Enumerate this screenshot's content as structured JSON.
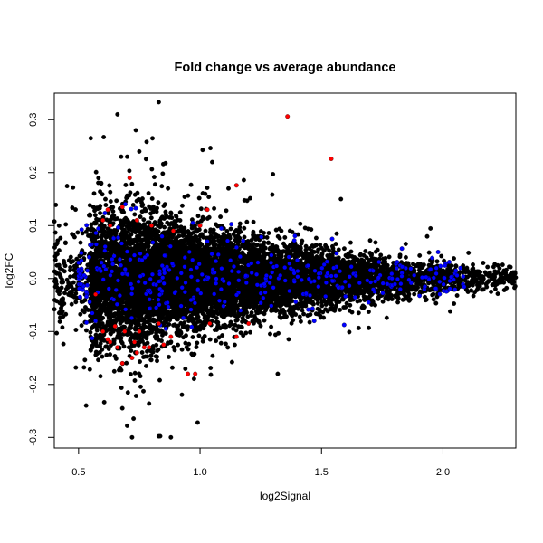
{
  "chart_data": {
    "type": "scatter",
    "title": "Fold change vs average abundance",
    "xlabel": "log2Signal",
    "ylabel": "log2FC",
    "xlim": [
      0.4,
      2.3
    ],
    "ylim": [
      -0.32,
      0.35
    ],
    "x_ticks": [
      0.5,
      1.0,
      1.5,
      2.0
    ],
    "x_tick_labels": [
      "0.5",
      "1.0",
      "1.5",
      "2.0"
    ],
    "y_ticks": [
      -0.3,
      -0.2,
      -0.1,
      0.0,
      0.1,
      0.2,
      0.3
    ],
    "y_tick_labels": [
      "-0.3",
      "-0.2",
      "-0.1",
      "0.0",
      "0.1",
      "0.2",
      "0.3"
    ],
    "grid": false,
    "legend": "none",
    "series": [
      {
        "color": "#000000",
        "envelope": {
          "x": [
            0.45,
            0.55,
            0.65,
            0.75,
            0.85,
            0.95,
            1.05,
            1.2,
            1.35,
            1.5,
            1.65,
            1.8,
            1.95,
            2.1,
            2.25
          ],
          "sd": [
            0.045,
            0.06,
            0.065,
            0.062,
            0.055,
            0.048,
            0.042,
            0.036,
            0.031,
            0.027,
            0.023,
            0.02,
            0.017,
            0.014,
            0.011
          ]
        },
        "density": [
          0.02,
          0.12,
          0.16,
          0.15,
          0.13,
          0.11,
          0.09,
          0.07,
          0.05,
          0.035,
          0.025,
          0.015,
          0.01
        ],
        "n_points": 9000,
        "points": [
          [
            0.66,
            0.31
          ],
          [
            0.83,
            0.333
          ],
          [
            0.55,
            0.265
          ],
          [
            0.78,
            0.258
          ],
          [
            0.75,
            0.24
          ],
          [
            0.7,
            0.23
          ],
          [
            1.05,
            0.22
          ],
          [
            1.3,
            0.197
          ],
          [
            1.18,
            0.186
          ],
          [
            1.58,
            0.15
          ],
          [
            0.72,
            -0.3
          ],
          [
            0.83,
            -0.298
          ],
          [
            0.88,
            -0.3
          ],
          [
            0.7,
            -0.278
          ],
          [
            0.99,
            -0.272
          ],
          [
            0.68,
            -0.245
          ],
          [
            0.79,
            -0.236
          ],
          [
            1.32,
            -0.18
          ],
          [
            2.03,
            -0.062
          ],
          [
            2.25,
            0.01
          ]
        ]
      },
      {
        "color": "#0000ff",
        "envelope": {
          "x": [
            0.5,
            0.8,
            1.2,
            1.6,
            2.0,
            2.1
          ],
          "sd": [
            0.042,
            0.04,
            0.032,
            0.025,
            0.018,
            0.015
          ]
        },
        "n_points": 380,
        "points": [
          [
            1.47,
            -0.08
          ],
          [
            1.55,
            0.02
          ],
          [
            1.98,
            0.05
          ],
          [
            1.03,
            0.07
          ],
          [
            0.57,
            -0.08
          ]
        ]
      },
      {
        "color": "#ff0000",
        "points": [
          [
            1.36,
            0.306
          ],
          [
            1.54,
            0.226
          ],
          [
            1.15,
            0.176
          ],
          [
            0.71,
            0.19
          ],
          [
            0.62,
            0.13
          ],
          [
            0.63,
            0.1
          ],
          [
            0.6,
            0.11
          ],
          [
            0.68,
            0.135
          ],
          [
            0.74,
            0.11
          ],
          [
            0.8,
            0.1
          ],
          [
            1.0,
            0.1
          ],
          [
            1.03,
            0.13
          ],
          [
            0.89,
            0.09
          ],
          [
            0.57,
            -0.03
          ],
          [
            0.6,
            -0.1
          ],
          [
            0.62,
            -0.115
          ],
          [
            0.63,
            -0.12
          ],
          [
            0.66,
            -0.13
          ],
          [
            0.69,
            -0.1
          ],
          [
            0.73,
            -0.12
          ],
          [
            0.74,
            -0.14
          ],
          [
            0.75,
            -0.1
          ],
          [
            0.77,
            -0.13
          ],
          [
            0.79,
            -0.13
          ],
          [
            0.83,
            -0.085
          ],
          [
            0.85,
            -0.125
          ],
          [
            0.88,
            -0.11
          ],
          [
            0.95,
            -0.18
          ],
          [
            0.98,
            -0.18
          ],
          [
            0.68,
            -0.16
          ],
          [
            1.04,
            -0.085
          ],
          [
            1.15,
            -0.11
          ],
          [
            1.2,
            -0.085
          ],
          [
            0.72,
            -0.15
          ],
          [
            0.65,
            -0.09
          ]
        ]
      }
    ]
  }
}
